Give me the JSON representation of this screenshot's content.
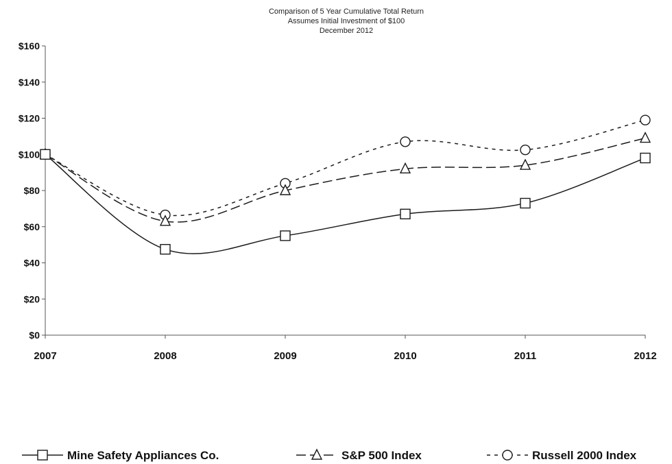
{
  "chart_data": {
    "type": "line",
    "title_lines": [
      "Comparison of 5 Year Cumulative Total Return",
      "Assumes Initial Investment of $100",
      "December 2012"
    ],
    "categories": [
      "2007",
      "2008",
      "2009",
      "2010",
      "2011",
      "2012"
    ],
    "y_tick_labels": [
      "$0",
      "$20",
      "$40",
      "$60",
      "$80",
      "$100",
      "$120",
      "$140",
      "$160"
    ],
    "ylim": [
      0,
      160
    ],
    "grid": false,
    "legend_position": "bottom",
    "series": [
      {
        "name": "Mine Safety Appliances Co.",
        "values": [
          100,
          47.5,
          55,
          67,
          73,
          98
        ],
        "marker": "square",
        "dash": "solid",
        "color": "#1a1a1a"
      },
      {
        "name": "S&P 500 Index",
        "values": [
          100,
          63,
          80,
          92,
          94,
          109
        ],
        "marker": "triangle",
        "dash": "long-dash",
        "color": "#1a1a1a"
      },
      {
        "name": "Russell 2000 Index",
        "values": [
          100,
          66.5,
          84,
          107,
          102.5,
          119
        ],
        "marker": "circle",
        "dash": "short-dash",
        "color": "#1a1a1a"
      }
    ]
  }
}
